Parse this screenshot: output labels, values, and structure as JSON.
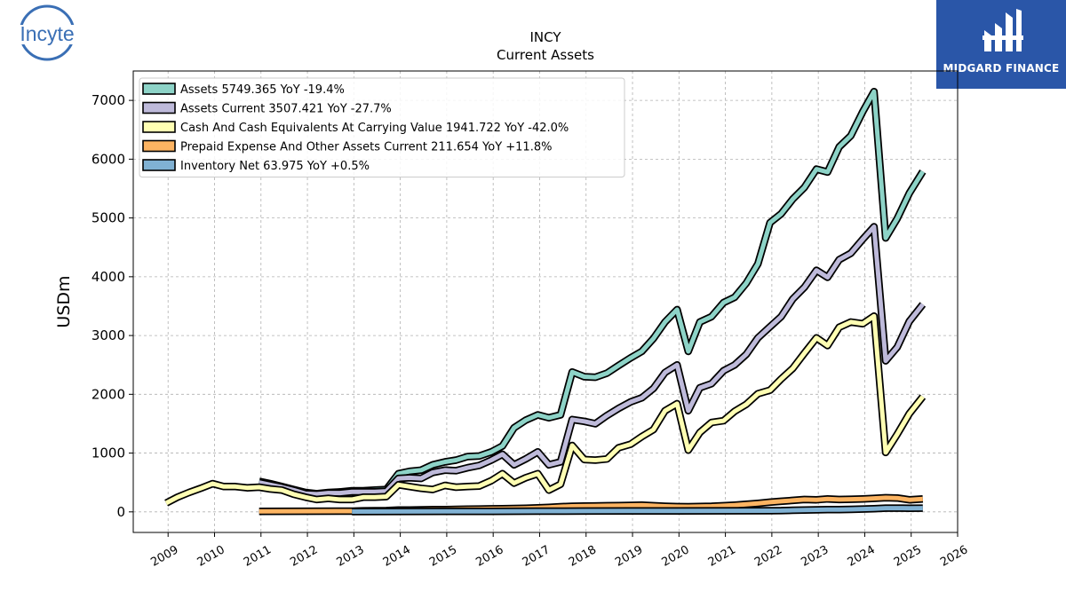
{
  "branding": {
    "left_logo_text": "Incyte",
    "right_logo_text": "MIDGARD FINANCE",
    "left_logo_color": "#3a6fb5",
    "right_logo_bg": "#2a56a8"
  },
  "chart_data": {
    "type": "line",
    "title": "INCY",
    "subtitle": "Current  Assets",
    "ylabel": "USDm",
    "xlabel": "",
    "xlim": [
      2008.25,
      2026.0
    ],
    "ylim": [
      -350,
      7500
    ],
    "yticks": [
      0,
      1000,
      2000,
      3000,
      4000,
      5000,
      6000,
      7000
    ],
    "xticks": [
      "2009",
      "2010",
      "2011",
      "2012",
      "2013",
      "2014",
      "2015",
      "2016",
      "2017",
      "2018",
      "2019",
      "2020",
      "2021",
      "2022",
      "2023",
      "2024",
      "2025",
      "2026"
    ],
    "grid": true,
    "legend_position": "top-left",
    "series": [
      {
        "name": "Assets",
        "legend": "Assets  5749.365 YoY -19.4%",
        "color": "#8dd3c7",
        "points": [
          [
            2010.96,
            520
          ],
          [
            2011.2,
            480
          ],
          [
            2011.45,
            430
          ],
          [
            2011.7,
            380
          ],
          [
            2011.96,
            330
          ],
          [
            2012.2,
            310
          ],
          [
            2012.45,
            330
          ],
          [
            2012.7,
            340
          ],
          [
            2012.96,
            360
          ],
          [
            2013.2,
            360
          ],
          [
            2013.45,
            370
          ],
          [
            2013.7,
            380
          ],
          [
            2013.96,
            650
          ],
          [
            2014.2,
            690
          ],
          [
            2014.45,
            710
          ],
          [
            2014.7,
            800
          ],
          [
            2014.96,
            850
          ],
          [
            2015.2,
            880
          ],
          [
            2015.45,
            940
          ],
          [
            2015.7,
            950
          ],
          [
            2015.96,
            1020
          ],
          [
            2016.2,
            1120
          ],
          [
            2016.45,
            1430
          ],
          [
            2016.7,
            1560
          ],
          [
            2016.96,
            1650
          ],
          [
            2017.2,
            1600
          ],
          [
            2017.45,
            1650
          ],
          [
            2017.7,
            2380
          ],
          [
            2017.96,
            2300
          ],
          [
            2018.2,
            2290
          ],
          [
            2018.45,
            2360
          ],
          [
            2018.7,
            2490
          ],
          [
            2018.96,
            2620
          ],
          [
            2019.2,
            2730
          ],
          [
            2019.45,
            2950
          ],
          [
            2019.7,
            3230
          ],
          [
            2019.96,
            3440
          ],
          [
            2020.2,
            2730
          ],
          [
            2020.45,
            3230
          ],
          [
            2020.7,
            3320
          ],
          [
            2020.96,
            3560
          ],
          [
            2021.2,
            3650
          ],
          [
            2021.45,
            3890
          ],
          [
            2021.7,
            4220
          ],
          [
            2021.96,
            4920
          ],
          [
            2022.2,
            5070
          ],
          [
            2022.45,
            5320
          ],
          [
            2022.7,
            5520
          ],
          [
            2022.96,
            5830
          ],
          [
            2023.2,
            5780
          ],
          [
            2023.45,
            6210
          ],
          [
            2023.7,
            6400
          ],
          [
            2023.96,
            6810
          ],
          [
            2024.2,
            7150
          ],
          [
            2024.45,
            4660
          ],
          [
            2024.7,
            4990
          ],
          [
            2024.96,
            5420
          ],
          [
            2025.25,
            5790
          ]
        ]
      },
      {
        "name": "Assets Current",
        "legend": "Assets Current  3507.421 YoY -27.7%",
        "color": "#bebada",
        "points": [
          [
            2010.96,
            500
          ],
          [
            2011.2,
            460
          ],
          [
            2011.45,
            420
          ],
          [
            2011.7,
            370
          ],
          [
            2011.96,
            310
          ],
          [
            2012.2,
            300
          ],
          [
            2012.45,
            320
          ],
          [
            2012.7,
            320
          ],
          [
            2012.96,
            340
          ],
          [
            2013.2,
            340
          ],
          [
            2013.45,
            340
          ],
          [
            2013.7,
            350
          ],
          [
            2013.96,
            570
          ],
          [
            2014.2,
            580
          ],
          [
            2014.45,
            570
          ],
          [
            2014.7,
            670
          ],
          [
            2014.96,
            710
          ],
          [
            2015.2,
            700
          ],
          [
            2015.45,
            750
          ],
          [
            2015.7,
            790
          ],
          [
            2015.96,
            880
          ],
          [
            2016.2,
            980
          ],
          [
            2016.45,
            800
          ],
          [
            2016.7,
            900
          ],
          [
            2016.96,
            1020
          ],
          [
            2017.2,
            800
          ],
          [
            2017.45,
            850
          ],
          [
            2017.7,
            1570
          ],
          [
            2017.96,
            1540
          ],
          [
            2018.2,
            1500
          ],
          [
            2018.45,
            1640
          ],
          [
            2018.7,
            1760
          ],
          [
            2018.96,
            1870
          ],
          [
            2019.2,
            1940
          ],
          [
            2019.45,
            2100
          ],
          [
            2019.7,
            2370
          ],
          [
            2019.96,
            2500
          ],
          [
            2020.2,
            1720
          ],
          [
            2020.45,
            2110
          ],
          [
            2020.7,
            2180
          ],
          [
            2020.96,
            2400
          ],
          [
            2021.2,
            2500
          ],
          [
            2021.45,
            2680
          ],
          [
            2021.7,
            2960
          ],
          [
            2021.96,
            3150
          ],
          [
            2022.2,
            3320
          ],
          [
            2022.45,
            3620
          ],
          [
            2022.7,
            3820
          ],
          [
            2022.96,
            4110
          ],
          [
            2023.2,
            3990
          ],
          [
            2023.45,
            4290
          ],
          [
            2023.7,
            4400
          ],
          [
            2023.96,
            4640
          ],
          [
            2024.2,
            4850
          ],
          [
            2024.45,
            2570
          ],
          [
            2024.7,
            2800
          ],
          [
            2024.96,
            3240
          ],
          [
            2025.25,
            3530
          ]
        ]
      },
      {
        "name": "Cash And Cash Equivalents At Carrying Value",
        "legend": "Cash And Cash Equivalents At Carrying Value  1941.722 YoY -42.0%",
        "color": "#ffffb3",
        "points": [
          [
            2008.96,
            150
          ],
          [
            2009.2,
            250
          ],
          [
            2009.45,
            330
          ],
          [
            2009.7,
            400
          ],
          [
            2009.96,
            480
          ],
          [
            2010.2,
            430
          ],
          [
            2010.45,
            430
          ],
          [
            2010.7,
            410
          ],
          [
            2010.96,
            420
          ],
          [
            2011.2,
            390
          ],
          [
            2011.45,
            370
          ],
          [
            2011.7,
            300
          ],
          [
            2011.96,
            250
          ],
          [
            2012.2,
            210
          ],
          [
            2012.45,
            230
          ],
          [
            2012.7,
            210
          ],
          [
            2012.96,
            210
          ],
          [
            2013.2,
            250
          ],
          [
            2013.45,
            250
          ],
          [
            2013.7,
            260
          ],
          [
            2013.96,
            460
          ],
          [
            2014.2,
            430
          ],
          [
            2014.45,
            400
          ],
          [
            2014.7,
            380
          ],
          [
            2014.96,
            450
          ],
          [
            2015.2,
            420
          ],
          [
            2015.45,
            430
          ],
          [
            2015.7,
            440
          ],
          [
            2015.96,
            530
          ],
          [
            2016.2,
            650
          ],
          [
            2016.45,
            490
          ],
          [
            2016.7,
            580
          ],
          [
            2016.96,
            650
          ],
          [
            2017.2,
            370
          ],
          [
            2017.45,
            470
          ],
          [
            2017.7,
            1130
          ],
          [
            2017.96,
            890
          ],
          [
            2018.2,
            880
          ],
          [
            2018.45,
            900
          ],
          [
            2018.7,
            1090
          ],
          [
            2018.96,
            1150
          ],
          [
            2019.2,
            1280
          ],
          [
            2019.45,
            1400
          ],
          [
            2019.7,
            1720
          ],
          [
            2019.96,
            1840
          ],
          [
            2020.2,
            1050
          ],
          [
            2020.45,
            1350
          ],
          [
            2020.7,
            1520
          ],
          [
            2020.96,
            1550
          ],
          [
            2021.2,
            1710
          ],
          [
            2021.45,
            1830
          ],
          [
            2021.7,
            2010
          ],
          [
            2021.96,
            2070
          ],
          [
            2022.2,
            2260
          ],
          [
            2022.45,
            2440
          ],
          [
            2022.7,
            2700
          ],
          [
            2022.96,
            2960
          ],
          [
            2023.2,
            2830
          ],
          [
            2023.45,
            3140
          ],
          [
            2023.7,
            3230
          ],
          [
            2023.96,
            3200
          ],
          [
            2024.2,
            3330
          ],
          [
            2024.45,
            1010
          ],
          [
            2024.7,
            1320
          ],
          [
            2024.96,
            1670
          ],
          [
            2025.25,
            1960
          ]
        ]
      },
      {
        "name": "Prepaid Expense And Other Assets Current",
        "legend": "Prepaid Expense And Other Assets Current  211.654 YoY +11.8%",
        "color": "#fdb462",
        "points": [
          [
            2010.96,
            10
          ],
          [
            2012.96,
            12
          ],
          [
            2013.2,
            18
          ],
          [
            2013.45,
            20
          ],
          [
            2013.7,
            22
          ],
          [
            2013.96,
            30
          ],
          [
            2014.2,
            32
          ],
          [
            2014.45,
            35
          ],
          [
            2014.7,
            38
          ],
          [
            2014.96,
            40
          ],
          [
            2015.2,
            42
          ],
          [
            2015.45,
            45
          ],
          [
            2015.7,
            48
          ],
          [
            2015.96,
            52
          ],
          [
            2016.2,
            55
          ],
          [
            2016.45,
            58
          ],
          [
            2016.7,
            62
          ],
          [
            2016.96,
            68
          ],
          [
            2017.2,
            75
          ],
          [
            2017.45,
            88
          ],
          [
            2017.7,
            95
          ],
          [
            2017.96,
            98
          ],
          [
            2018.2,
            102
          ],
          [
            2018.45,
            105
          ],
          [
            2018.7,
            108
          ],
          [
            2018.96,
            110
          ],
          [
            2019.2,
            115
          ],
          [
            2019.45,
            105
          ],
          [
            2019.7,
            95
          ],
          [
            2019.96,
            90
          ],
          [
            2020.2,
            88
          ],
          [
            2020.45,
            92
          ],
          [
            2020.7,
            95
          ],
          [
            2020.96,
            105
          ],
          [
            2021.2,
            115
          ],
          [
            2021.45,
            130
          ],
          [
            2021.7,
            145
          ],
          [
            2021.96,
            165
          ],
          [
            2022.2,
            180
          ],
          [
            2022.45,
            195
          ],
          [
            2022.7,
            210
          ],
          [
            2022.96,
            205
          ],
          [
            2023.2,
            220
          ],
          [
            2023.45,
            210
          ],
          [
            2023.7,
            215
          ],
          [
            2023.96,
            220
          ],
          [
            2024.2,
            230
          ],
          [
            2024.45,
            240
          ],
          [
            2024.7,
            235
          ],
          [
            2024.96,
            205
          ],
          [
            2025.25,
            220
          ]
        ]
      },
      {
        "name": "Inventory Net",
        "legend": "Inventory Net  63.975 YoY +0.5%",
        "color": "#80b1d3",
        "points": [
          [
            2012.96,
            5
          ],
          [
            2013.96,
            6
          ],
          [
            2014.96,
            8
          ],
          [
            2015.96,
            10
          ],
          [
            2016.96,
            12
          ],
          [
            2017.96,
            14
          ],
          [
            2018.96,
            15
          ],
          [
            2019.96,
            16
          ],
          [
            2020.96,
            18
          ],
          [
            2021.96,
            20
          ],
          [
            2022.2,
            22
          ],
          [
            2022.45,
            28
          ],
          [
            2022.7,
            30
          ],
          [
            2022.96,
            35
          ],
          [
            2023.2,
            38
          ],
          [
            2023.45,
            40
          ],
          [
            2023.7,
            42
          ],
          [
            2023.96,
            48
          ],
          [
            2024.2,
            55
          ],
          [
            2024.45,
            63
          ],
          [
            2024.7,
            64
          ],
          [
            2024.96,
            62
          ],
          [
            2025.25,
            64
          ]
        ]
      }
    ]
  }
}
